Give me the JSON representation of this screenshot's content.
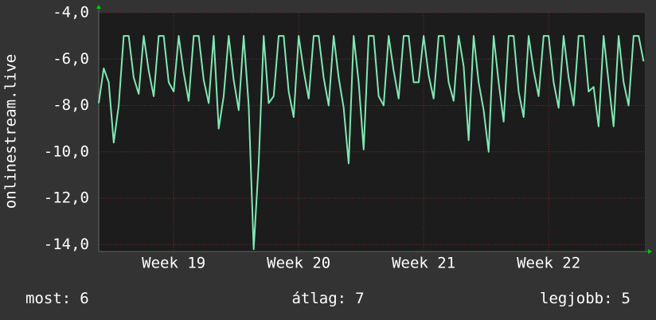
{
  "chart_data": {
    "type": "line",
    "y_label": "onlinestream.live",
    "x": [
      18.4,
      18.44,
      18.48,
      18.52,
      18.56,
      18.6,
      18.64,
      18.68,
      18.72,
      18.76,
      18.8,
      18.84,
      18.88,
      18.92,
      18.96,
      19.0,
      19.04,
      19.08,
      19.12,
      19.16,
      19.2,
      19.24,
      19.28,
      19.32,
      19.36,
      19.4,
      19.44,
      19.48,
      19.52,
      19.56,
      19.6,
      19.64,
      19.68,
      19.72,
      19.76,
      19.8,
      19.84,
      19.88,
      19.92,
      19.96,
      20.0,
      20.04,
      20.08,
      20.12,
      20.16,
      20.2,
      20.24,
      20.28,
      20.32,
      20.36,
      20.4,
      20.44,
      20.48,
      20.52,
      20.56,
      20.6,
      20.64,
      20.68,
      20.72,
      20.76,
      20.8,
      20.84,
      20.88,
      20.92,
      20.96,
      21.0,
      21.04,
      21.08,
      21.12,
      21.16,
      21.2,
      21.24,
      21.28,
      21.32,
      21.36,
      21.4,
      21.44,
      21.48,
      21.52,
      21.56,
      21.6,
      21.64,
      21.68,
      21.72,
      21.76,
      21.8,
      21.84,
      21.88,
      21.92,
      21.96,
      22.0,
      22.04,
      22.08,
      22.12,
      22.16,
      22.2,
      22.24,
      22.28,
      22.32,
      22.36,
      22.4,
      22.44,
      22.48,
      22.52,
      22.56,
      22.6,
      22.64,
      22.68,
      22.72,
      22.76
    ],
    "series": [
      {
        "name": "onlinestream.live",
        "color": "#7fe8b4",
        "values": [
          -7.9,
          -6.4,
          -7.0,
          -9.6,
          -8.0,
          -5.0,
          -5.0,
          -6.8,
          -7.5,
          -5.0,
          -6.5,
          -7.6,
          -5.0,
          -5.0,
          -7.0,
          -7.4,
          -5.0,
          -6.6,
          -7.8,
          -5.0,
          -5.0,
          -6.9,
          -7.9,
          -5.0,
          -9.0,
          -7.6,
          -5.0,
          -6.9,
          -8.2,
          -5.0,
          -8.0,
          -14.2,
          -10.5,
          -5.0,
          -7.9,
          -7.6,
          -5.0,
          -5.0,
          -7.4,
          -8.5,
          -5.0,
          -6.5,
          -7.7,
          -5.0,
          -5.0,
          -6.8,
          -8.0,
          -5.0,
          -6.8,
          -8.1,
          -10.5,
          -5.0,
          -7.0,
          -9.9,
          -5.0,
          -5.0,
          -7.6,
          -8.0,
          -5.0,
          -6.5,
          -7.7,
          -5.0,
          -5.0,
          -7.0,
          -7.0,
          -5.0,
          -6.7,
          -7.7,
          -5.0,
          -5.0,
          -7.0,
          -7.8,
          -5.0,
          -6.3,
          -9.5,
          -5.0,
          -7.0,
          -8.2,
          -10.0,
          -5.0,
          -7.0,
          -8.7,
          -5.0,
          -5.0,
          -7.4,
          -8.5,
          -5.0,
          -6.5,
          -7.6,
          -5.0,
          -5.0,
          -7.0,
          -8.1,
          -5.0,
          -6.8,
          -8.0,
          -5.0,
          -5.0,
          -7.4,
          -7.2,
          -8.9,
          -5.0,
          -7.0,
          -8.9,
          -5.0,
          -7.0,
          -8.0,
          -5.0,
          -5.0,
          -6.1
        ]
      }
    ],
    "xlim": [
      18.4,
      22.77
    ],
    "xticks": [
      {
        "value": 19,
        "label": "Week 19"
      },
      {
        "value": 20,
        "label": "Week 20"
      },
      {
        "value": 21,
        "label": "Week 21"
      },
      {
        "value": 22,
        "label": "Week 22"
      }
    ],
    "ylim": [
      -14.3,
      -4.0
    ],
    "yticks": [
      {
        "value": -4,
        "label": "-4,0"
      },
      {
        "value": -6,
        "label": "-6,0"
      },
      {
        "value": -8,
        "label": "-8,0"
      },
      {
        "value": -10,
        "label": "-10,0"
      },
      {
        "value": -12,
        "label": "-12,0"
      },
      {
        "value": -14,
        "label": "-14,0"
      }
    ],
    "grid": true,
    "stats": [
      {
        "label": "most:",
        "value": 6
      },
      {
        "label": "átlag:",
        "value": 7
      },
      {
        "label": "legjobb:",
        "value": 5
      }
    ]
  }
}
